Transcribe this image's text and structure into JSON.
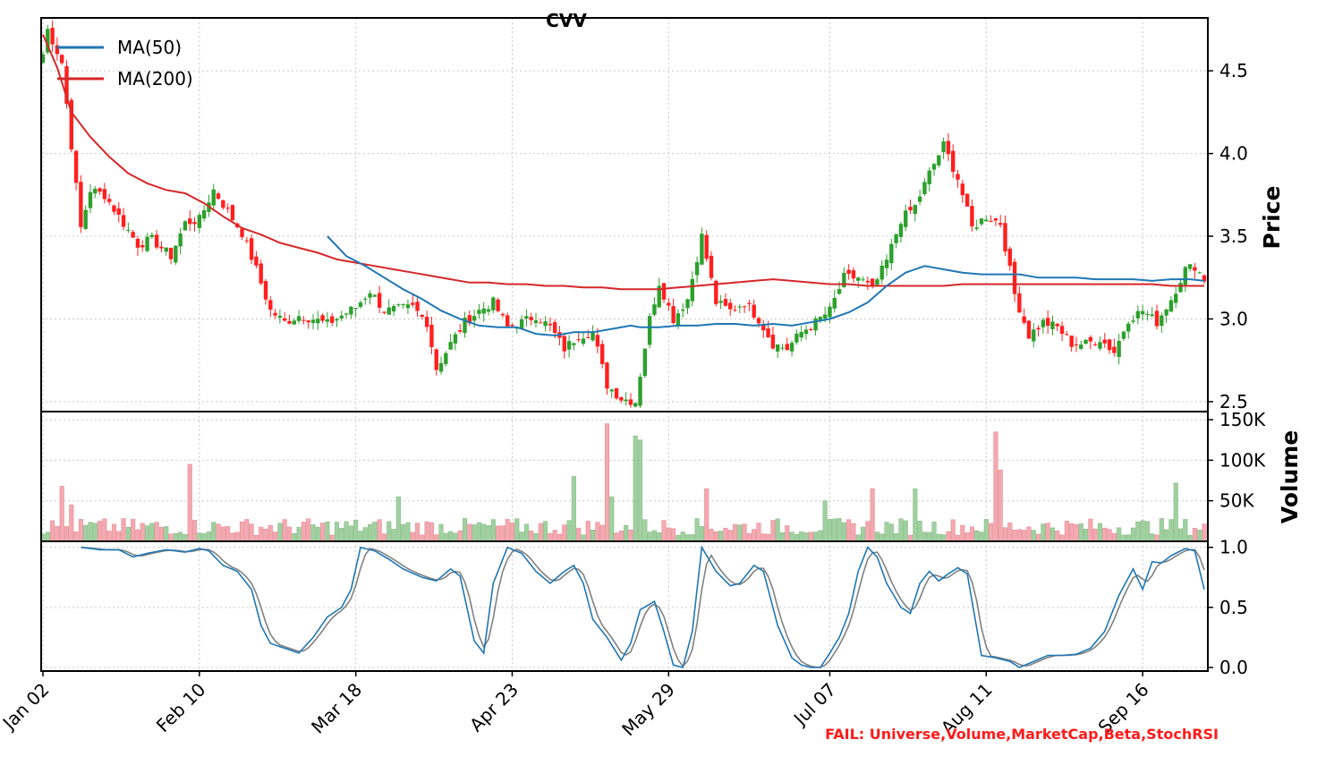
{
  "chart_data": [
    {
      "type": "candlestick",
      "panel": "price",
      "title": "CVV",
      "ylabel": "Price",
      "ylim": [
        2.44,
        4.82
      ],
      "yticks": [
        2.5,
        3.0,
        3.5,
        4.0,
        4.5
      ],
      "ytick_labels": [
        "2.5",
        "3.0",
        "3.5",
        "4.0",
        "4.5"
      ],
      "up_color": "#2ca02c",
      "down_color": "#ff1f1f",
      "anchors": [
        [
          0,
          4.6
        ],
        [
          1,
          4.75
        ],
        [
          4,
          4.55
        ],
        [
          6,
          4.05
        ],
        [
          8,
          3.55
        ],
        [
          10,
          3.78
        ],
        [
          13,
          3.75
        ],
        [
          16,
          3.62
        ],
        [
          20,
          3.45
        ],
        [
          23,
          3.48
        ],
        [
          27,
          3.38
        ],
        [
          30,
          3.58
        ],
        [
          33,
          3.6
        ],
        [
          36,
          3.78
        ],
        [
          39,
          3.65
        ],
        [
          42,
          3.52
        ],
        [
          45,
          3.3
        ],
        [
          48,
          3.05
        ],
        [
          51,
          2.98
        ],
        [
          54,
          3.02
        ],
        [
          57,
          3.0
        ],
        [
          60,
          2.97
        ],
        [
          63,
          3.02
        ],
        [
          66,
          3.07
        ],
        [
          69,
          3.17
        ],
        [
          72,
          3.05
        ],
        [
          75,
          3.06
        ],
        [
          78,
          3.07
        ],
        [
          81,
          2.98
        ],
        [
          83,
          2.7
        ],
        [
          86,
          2.85
        ],
        [
          89,
          2.98
        ],
        [
          92,
          3.05
        ],
        [
          95,
          3.1
        ],
        [
          98,
          2.95
        ],
        [
          101,
          2.98
        ],
        [
          104,
          3.02
        ],
        [
          107,
          2.95
        ],
        [
          110,
          2.82
        ],
        [
          113,
          2.9
        ],
        [
          116,
          2.92
        ],
        [
          119,
          2.6
        ],
        [
          122,
          2.52
        ],
        [
          125,
          2.5
        ],
        [
          128,
          3.0
        ],
        [
          130,
          3.22
        ],
        [
          133,
          3.0
        ],
        [
          136,
          3.12
        ],
        [
          139,
          3.5
        ],
        [
          142,
          3.1
        ],
        [
          145,
          3.05
        ],
        [
          148,
          3.1
        ],
        [
          151,
          3.0
        ],
        [
          154,
          2.85
        ],
        [
          157,
          2.82
        ],
        [
          160,
          2.92
        ],
        [
          163,
          2.98
        ],
        [
          166,
          3.05
        ],
        [
          169,
          3.25
        ],
        [
          172,
          3.25
        ],
        [
          175,
          3.18
        ],
        [
          178,
          3.35
        ],
        [
          181,
          3.6
        ],
        [
          184,
          3.68
        ],
        [
          187,
          3.88
        ],
        [
          190,
          4.05
        ],
        [
          193,
          3.85
        ],
        [
          196,
          3.55
        ],
        [
          199,
          3.62
        ],
        [
          202,
          3.58
        ],
        [
          205,
          3.15
        ],
        [
          208,
          2.9
        ],
        [
          211,
          2.98
        ],
        [
          214,
          2.95
        ],
        [
          217,
          2.85
        ],
        [
          220,
          2.85
        ],
        [
          223,
          2.88
        ],
        [
          226,
          2.8
        ],
        [
          229,
          3.0
        ],
        [
          232,
          3.05
        ],
        [
          235,
          2.98
        ],
        [
          238,
          3.12
        ],
        [
          241,
          3.3
        ],
        [
          243,
          3.32
        ],
        [
          245,
          3.24
        ]
      ],
      "ma50": [
        [
          60,
          3.5
        ],
        [
          64,
          3.38
        ],
        [
          68,
          3.32
        ],
        [
          72,
          3.25
        ],
        [
          76,
          3.18
        ],
        [
          80,
          3.12
        ],
        [
          84,
          3.05
        ],
        [
          88,
          3.0
        ],
        [
          92,
          2.96
        ],
        [
          96,
          2.95
        ],
        [
          100,
          2.95
        ],
        [
          104,
          2.91
        ],
        [
          108,
          2.9
        ],
        [
          112,
          2.92
        ],
        [
          116,
          2.92
        ],
        [
          120,
          2.94
        ],
        [
          124,
          2.96
        ],
        [
          126,
          2.95
        ],
        [
          130,
          2.95
        ],
        [
          134,
          2.96
        ],
        [
          138,
          2.96
        ],
        [
          142,
          2.97
        ],
        [
          146,
          2.97
        ],
        [
          150,
          2.96
        ],
        [
          154,
          2.97
        ],
        [
          158,
          2.96
        ],
        [
          162,
          2.98
        ],
        [
          166,
          3.0
        ],
        [
          170,
          3.04
        ],
        [
          174,
          3.1
        ],
        [
          178,
          3.2
        ],
        [
          182,
          3.28
        ],
        [
          186,
          3.32
        ],
        [
          190,
          3.3
        ],
        [
          194,
          3.28
        ],
        [
          198,
          3.27
        ],
        [
          202,
          3.27
        ],
        [
          206,
          3.27
        ],
        [
          210,
          3.25
        ],
        [
          214,
          3.25
        ],
        [
          218,
          3.25
        ],
        [
          222,
          3.24
        ],
        [
          226,
          3.24
        ],
        [
          230,
          3.24
        ],
        [
          234,
          3.23
        ],
        [
          238,
          3.24
        ],
        [
          242,
          3.24
        ],
        [
          245,
          3.23
        ]
      ],
      "ma200": [
        [
          0,
          4.72
        ],
        [
          3,
          4.52
        ],
        [
          6,
          4.25
        ],
        [
          10,
          4.1
        ],
        [
          14,
          3.98
        ],
        [
          18,
          3.88
        ],
        [
          22,
          3.82
        ],
        [
          26,
          3.78
        ],
        [
          30,
          3.76
        ],
        [
          34,
          3.7
        ],
        [
          38,
          3.62
        ],
        [
          42,
          3.55
        ],
        [
          46,
          3.51
        ],
        [
          50,
          3.46
        ],
        [
          54,
          3.43
        ],
        [
          58,
          3.4
        ],
        [
          62,
          3.36
        ],
        [
          66,
          3.34
        ],
        [
          70,
          3.32
        ],
        [
          74,
          3.3
        ],
        [
          78,
          3.28
        ],
        [
          82,
          3.26
        ],
        [
          86,
          3.24
        ],
        [
          90,
          3.22
        ],
        [
          94,
          3.22
        ],
        [
          98,
          3.21
        ],
        [
          102,
          3.21
        ],
        [
          106,
          3.2
        ],
        [
          110,
          3.2
        ],
        [
          114,
          3.19
        ],
        [
          118,
          3.19
        ],
        [
          122,
          3.18
        ],
        [
          126,
          3.18
        ],
        [
          130,
          3.18
        ],
        [
          134,
          3.19
        ],
        [
          138,
          3.2
        ],
        [
          142,
          3.21
        ],
        [
          146,
          3.22
        ],
        [
          150,
          3.23
        ],
        [
          154,
          3.24
        ],
        [
          158,
          3.23
        ],
        [
          162,
          3.22
        ],
        [
          166,
          3.21
        ],
        [
          170,
          3.21
        ],
        [
          174,
          3.2
        ],
        [
          178,
          3.2
        ],
        [
          182,
          3.2
        ],
        [
          186,
          3.2
        ],
        [
          190,
          3.2
        ],
        [
          194,
          3.21
        ],
        [
          198,
          3.21
        ],
        [
          202,
          3.21
        ],
        [
          206,
          3.21
        ],
        [
          210,
          3.21
        ],
        [
          214,
          3.21
        ],
        [
          218,
          3.21
        ],
        [
          222,
          3.21
        ],
        [
          226,
          3.21
        ],
        [
          230,
          3.21
        ],
        [
          234,
          3.21
        ],
        [
          238,
          3.2
        ],
        [
          242,
          3.2
        ],
        [
          245,
          3.2
        ]
      ],
      "legend": [
        {
          "label": "MA(50)",
          "color": "#1f77b4"
        },
        {
          "label": "MA(200)",
          "color": "#d62728"
        }
      ],
      "legend_location": "top-left"
    },
    {
      "type": "bar",
      "panel": "volume",
      "ylabel": "Volume",
      "ylim": [
        0,
        160000
      ],
      "yticks": [
        50000,
        100000,
        150000
      ],
      "ytick_labels": [
        "50K",
        "100K",
        "150K"
      ],
      "up_color": "#a0d0a0",
      "down_color": "#f4a8b0",
      "spikes": [
        [
          4,
          68000
        ],
        [
          6,
          45000
        ],
        [
          31,
          95000
        ],
        [
          75,
          55000
        ],
        [
          112,
          80000
        ],
        [
          119,
          145000
        ],
        [
          120,
          55000
        ],
        [
          125,
          130000
        ],
        [
          126,
          125000
        ],
        [
          140,
          65000
        ],
        [
          165,
          50000
        ],
        [
          175,
          65000
        ],
        [
          184,
          65000
        ],
        [
          201,
          135000
        ],
        [
          202,
          88000
        ],
        [
          239,
          72000
        ]
      ],
      "base_volume": 15000
    },
    {
      "type": "line",
      "panel": "stoch-rsi",
      "ylim": [
        -0.03,
        1.05
      ],
      "yticks": [
        0.0,
        0.5,
        1.0
      ],
      "ytick_labels": [
        "0.0",
        "0.5",
        "1.0"
      ],
      "k_color": "#1f77b4",
      "d_color": "#808080",
      "k_anchors": [
        [
          8,
          1.0
        ],
        [
          12,
          0.98
        ],
        [
          16,
          0.98
        ],
        [
          19,
          0.92
        ],
        [
          22,
          0.95
        ],
        [
          26,
          0.98
        ],
        [
          30,
          0.96
        ],
        [
          33,
          0.99
        ],
        [
          35,
          0.97
        ],
        [
          38,
          0.85
        ],
        [
          41,
          0.8
        ],
        [
          44,
          0.65
        ],
        [
          46,
          0.35
        ],
        [
          48,
          0.2
        ],
        [
          51,
          0.16
        ],
        [
          54,
          0.12
        ],
        [
          57,
          0.25
        ],
        [
          60,
          0.42
        ],
        [
          63,
          0.5
        ],
        [
          65,
          0.65
        ],
        [
          67,
          1.0
        ],
        [
          70,
          0.97
        ],
        [
          73,
          0.9
        ],
        [
          76,
          0.82
        ],
        [
          80,
          0.75
        ],
        [
          83,
          0.72
        ],
        [
          86,
          0.82
        ],
        [
          88,
          0.76
        ],
        [
          91,
          0.22
        ],
        [
          93,
          0.12
        ],
        [
          95,
          0.7
        ],
        [
          98,
          1.0
        ],
        [
          101,
          0.95
        ],
        [
          104,
          0.8
        ],
        [
          107,
          0.7
        ],
        [
          110,
          0.8
        ],
        [
          112,
          0.85
        ],
        [
          114,
          0.7
        ],
        [
          116,
          0.4
        ],
        [
          119,
          0.25
        ],
        [
          122,
          0.06
        ],
        [
          124,
          0.2
        ],
        [
          126,
          0.48
        ],
        [
          129,
          0.55
        ],
        [
          131,
          0.3
        ],
        [
          133,
          0.02
        ],
        [
          135,
          0.0
        ],
        [
          137,
          0.3
        ],
        [
          139,
          1.0
        ],
        [
          142,
          0.8
        ],
        [
          145,
          0.68
        ],
        [
          147,
          0.7
        ],
        [
          150,
          0.85
        ],
        [
          152,
          0.8
        ],
        [
          155,
          0.35
        ],
        [
          158,
          0.08
        ],
        [
          160,
          0.02
        ],
        [
          162,
          0.0
        ],
        [
          164,
          0.0
        ],
        [
          166,
          0.12
        ],
        [
          168,
          0.25
        ],
        [
          170,
          0.45
        ],
        [
          172,
          0.8
        ],
        [
          174,
          1.0
        ],
        [
          176,
          0.92
        ],
        [
          178,
          0.7
        ],
        [
          181,
          0.5
        ],
        [
          183,
          0.45
        ],
        [
          185,
          0.7
        ],
        [
          187,
          0.8
        ],
        [
          189,
          0.72
        ],
        [
          191,
          0.78
        ],
        [
          193,
          0.83
        ],
        [
          195,
          0.78
        ],
        [
          198,
          0.1
        ],
        [
          201,
          0.08
        ],
        [
          204,
          0.05
        ],
        [
          206,
          0.0
        ],
        [
          209,
          0.05
        ],
        [
          212,
          0.1
        ],
        [
          215,
          0.1
        ],
        [
          218,
          0.11
        ],
        [
          221,
          0.16
        ],
        [
          224,
          0.3
        ],
        [
          227,
          0.6
        ],
        [
          230,
          0.82
        ],
        [
          232,
          0.65
        ],
        [
          234,
          0.88
        ],
        [
          236,
          0.87
        ],
        [
          238,
          0.93
        ],
        [
          241,
          0.99
        ],
        [
          243,
          0.97
        ],
        [
          245,
          0.65
        ]
      ]
    }
  ],
  "xaxis": {
    "n": 246,
    "ticks": [
      {
        "label": "Jan 02",
        "index": 0
      },
      {
        "label": "Feb 10",
        "index": 33
      },
      {
        "label": "Mar 18",
        "index": 66
      },
      {
        "label": "Apr 23",
        "index": 99
      },
      {
        "label": "May 29",
        "index": 132
      },
      {
        "label": "Jul 07",
        "index": 166
      },
      {
        "label": "Aug 11",
        "index": 199
      },
      {
        "label": "Sep 16",
        "index": 232
      }
    ]
  },
  "fail_text": "FAIL: Universe,Volume,MarketCap,Beta,StochRSI"
}
